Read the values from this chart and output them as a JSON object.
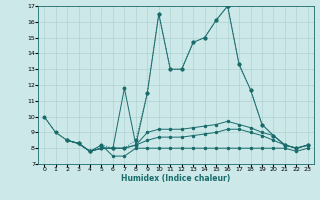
{
  "xlabel": "Humidex (Indice chaleur)",
  "bg_color": "#cce8e8",
  "line_color": "#1a6b6b",
  "grid_color": "#aacccc",
  "xlim": [
    -0.5,
    23.5
  ],
  "ylim": [
    7,
    17
  ],
  "xticks": [
    0,
    1,
    2,
    3,
    4,
    5,
    6,
    7,
    8,
    9,
    10,
    11,
    12,
    13,
    14,
    15,
    16,
    17,
    18,
    19,
    20,
    21,
    22,
    23
  ],
  "yticks": [
    7,
    8,
    9,
    10,
    11,
    12,
    13,
    14,
    15,
    16,
    17
  ],
  "series": [
    {
      "x": [
        0,
        1,
        2,
        3,
        4,
        5,
        6,
        7,
        8,
        9,
        10,
        11,
        12,
        13,
        14,
        15,
        16,
        17,
        18,
        19,
        20,
        21,
        22,
        23
      ],
      "y": [
        10,
        9,
        8.5,
        8.3,
        7.8,
        8.2,
        8.0,
        8.0,
        8.5,
        11.5,
        16.5,
        13.0,
        13.0,
        14.7,
        15.0,
        16.1,
        17.0,
        13.3,
        11.7,
        9.5,
        8.8,
        8.2,
        8.0,
        8.2
      ],
      "linestyle": "dotted",
      "marker": true
    },
    {
      "x": [
        2,
        3,
        4,
        5,
        6,
        7,
        8,
        9,
        10,
        11,
        12,
        13,
        14,
        15,
        16,
        17,
        18,
        19,
        20,
        21,
        22,
        23
      ],
      "y": [
        8.5,
        8.3,
        7.8,
        8.0,
        8.0,
        11.8,
        8.2,
        11.5,
        16.5,
        13.0,
        13.0,
        14.7,
        15.0,
        16.1,
        17.0,
        13.3,
        11.7,
        9.5,
        8.8,
        8.2,
        8.0,
        8.2
      ],
      "linestyle": "solid",
      "marker": true
    },
    {
      "x": [
        0,
        1,
        2,
        3,
        4,
        5,
        6,
        7,
        8,
        9,
        10,
        11,
        12,
        13,
        14,
        15,
        16,
        17,
        18,
        19,
        20,
        21,
        22,
        23
      ],
      "y": [
        10,
        9,
        8.5,
        8.3,
        7.8,
        8.2,
        7.5,
        7.5,
        8.0,
        8.0,
        8.0,
        8.0,
        8.0,
        8.0,
        8.0,
        8.0,
        8.0,
        8.0,
        8.0,
        8.0,
        8.0,
        8.0,
        7.8,
        8.0
      ],
      "linestyle": "solid",
      "marker": true
    },
    {
      "x": [
        2,
        3,
        4,
        5,
        6,
        7,
        8,
        9,
        10,
        11,
        12,
        13,
        14,
        15,
        16,
        17,
        18,
        19,
        20,
        21,
        22,
        23
      ],
      "y": [
        8.5,
        8.3,
        7.8,
        8.0,
        8.0,
        8.0,
        8.2,
        8.5,
        8.7,
        8.7,
        8.7,
        8.8,
        8.9,
        9.0,
        9.2,
        9.2,
        9.0,
        8.8,
        8.5,
        8.2,
        8.0,
        8.2
      ],
      "linestyle": "solid",
      "marker": true
    },
    {
      "x": [
        2,
        3,
        4,
        5,
        6,
        7,
        8,
        9,
        10,
        11,
        12,
        13,
        14,
        15,
        16,
        17,
        18,
        19,
        20,
        21,
        22,
        23
      ],
      "y": [
        8.5,
        8.3,
        7.8,
        8.0,
        8.0,
        8.0,
        8.2,
        9.0,
        9.2,
        9.2,
        9.2,
        9.3,
        9.4,
        9.5,
        9.7,
        9.5,
        9.3,
        9.0,
        8.8,
        8.2,
        8.0,
        8.2
      ],
      "linestyle": "solid",
      "marker": true
    }
  ]
}
